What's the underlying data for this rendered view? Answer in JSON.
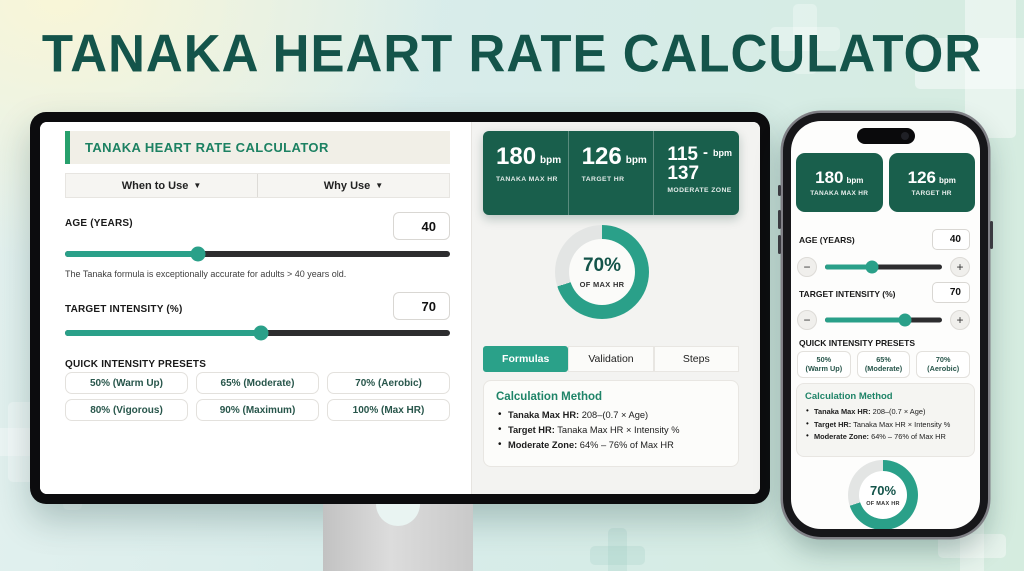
{
  "title": "TANAKA HEART RATE CALCULATOR",
  "colors": {
    "accent": "#2aa089",
    "panel_green": "#195f4c",
    "title_green": "#14544a",
    "header_green": "#1c8162",
    "gauge_track": "#e3e5e4"
  },
  "icons": {
    "chevron_down": "▼",
    "minus": "−",
    "plus": "+"
  },
  "desktop": {
    "header": {
      "title": "TANAKA HEART RATE CALCULATOR"
    },
    "dropdowns": [
      {
        "label": "When to Use"
      },
      {
        "label": "Why Use"
      }
    ],
    "age": {
      "label": "AGE (YEARS)",
      "value": "40",
      "slider_percent": 34.5,
      "note": "The Tanaka formula is exceptionally accurate for adults > 40 years old."
    },
    "intensity": {
      "label": "TARGET INTENSITY (%)",
      "value": "70",
      "slider_percent": 51
    },
    "presets": {
      "label": "QUICK INTENSITY PRESETS",
      "items": [
        "50% (Warm Up)",
        "65% (Moderate)",
        "70% (Aerobic)",
        "80% (Vigorous)",
        "90% (Maximum)",
        "100% (Max HR)"
      ]
    },
    "stats": {
      "max_hr": {
        "value": "180",
        "unit": "bpm",
        "label": "TANAKA MAX HR"
      },
      "target_hr": {
        "value": "126",
        "unit": "bpm",
        "label": "TARGET HR"
      },
      "moderate_zone": {
        "value_top": "115",
        "dash": "-",
        "unit": "bpm",
        "value_bottom": "137",
        "label": "MODERATE ZONE"
      }
    },
    "gauge": {
      "percent": 70,
      "value_label": "70%",
      "sub_label": "OF MAX HR"
    },
    "tabs": [
      {
        "label": "Formulas"
      },
      {
        "label": "Validation"
      },
      {
        "label": "Steps"
      }
    ],
    "calc": {
      "title": "Calculation Method",
      "bullets": [
        {
          "term": "Tanaka Max HR:",
          "rest": " 208–(0.7 × Age)"
        },
        {
          "term": "Target HR:",
          "rest": " Tanaka Max HR × Intensity %"
        },
        {
          "term": "Moderate Zone:",
          "rest": " 64% – 76% of Max HR"
        }
      ]
    }
  },
  "mobile": {
    "stats": {
      "max_hr": {
        "value": "180",
        "unit": "bpm",
        "label": "TANAKA MAX HR"
      },
      "target_hr": {
        "value": "126",
        "unit": "bpm",
        "label": "TARGET HR"
      }
    },
    "age": {
      "label": "AGE (YEARS)",
      "value": "40",
      "slider_percent": 40
    },
    "intensity": {
      "label": "TARGET INTENSITY (%)",
      "value": "70",
      "slider_percent": 68
    },
    "presets": {
      "label": "QUICK INTENSITY PRESETS",
      "items": [
        {
          "pct": "50%",
          "name": "(Warm Up)"
        },
        {
          "pct": "65%",
          "name": "(Moderate)"
        },
        {
          "pct": "70%",
          "name": "(Aerobic)"
        }
      ]
    },
    "calc": {
      "title": "Calculation Method",
      "bullets": [
        {
          "term": "Tanaka Max HR:",
          "rest": " 208–(0.7 × Age)"
        },
        {
          "term": "Target HR:",
          "rest": " Tanaka Max HR × Intensity %"
        },
        {
          "term": "Moderate Zone:",
          "rest": " 64% – 76% of Max HR"
        }
      ]
    },
    "gauge": {
      "percent": 70,
      "value_label": "70%",
      "sub_label": "OF MAX HR"
    }
  }
}
